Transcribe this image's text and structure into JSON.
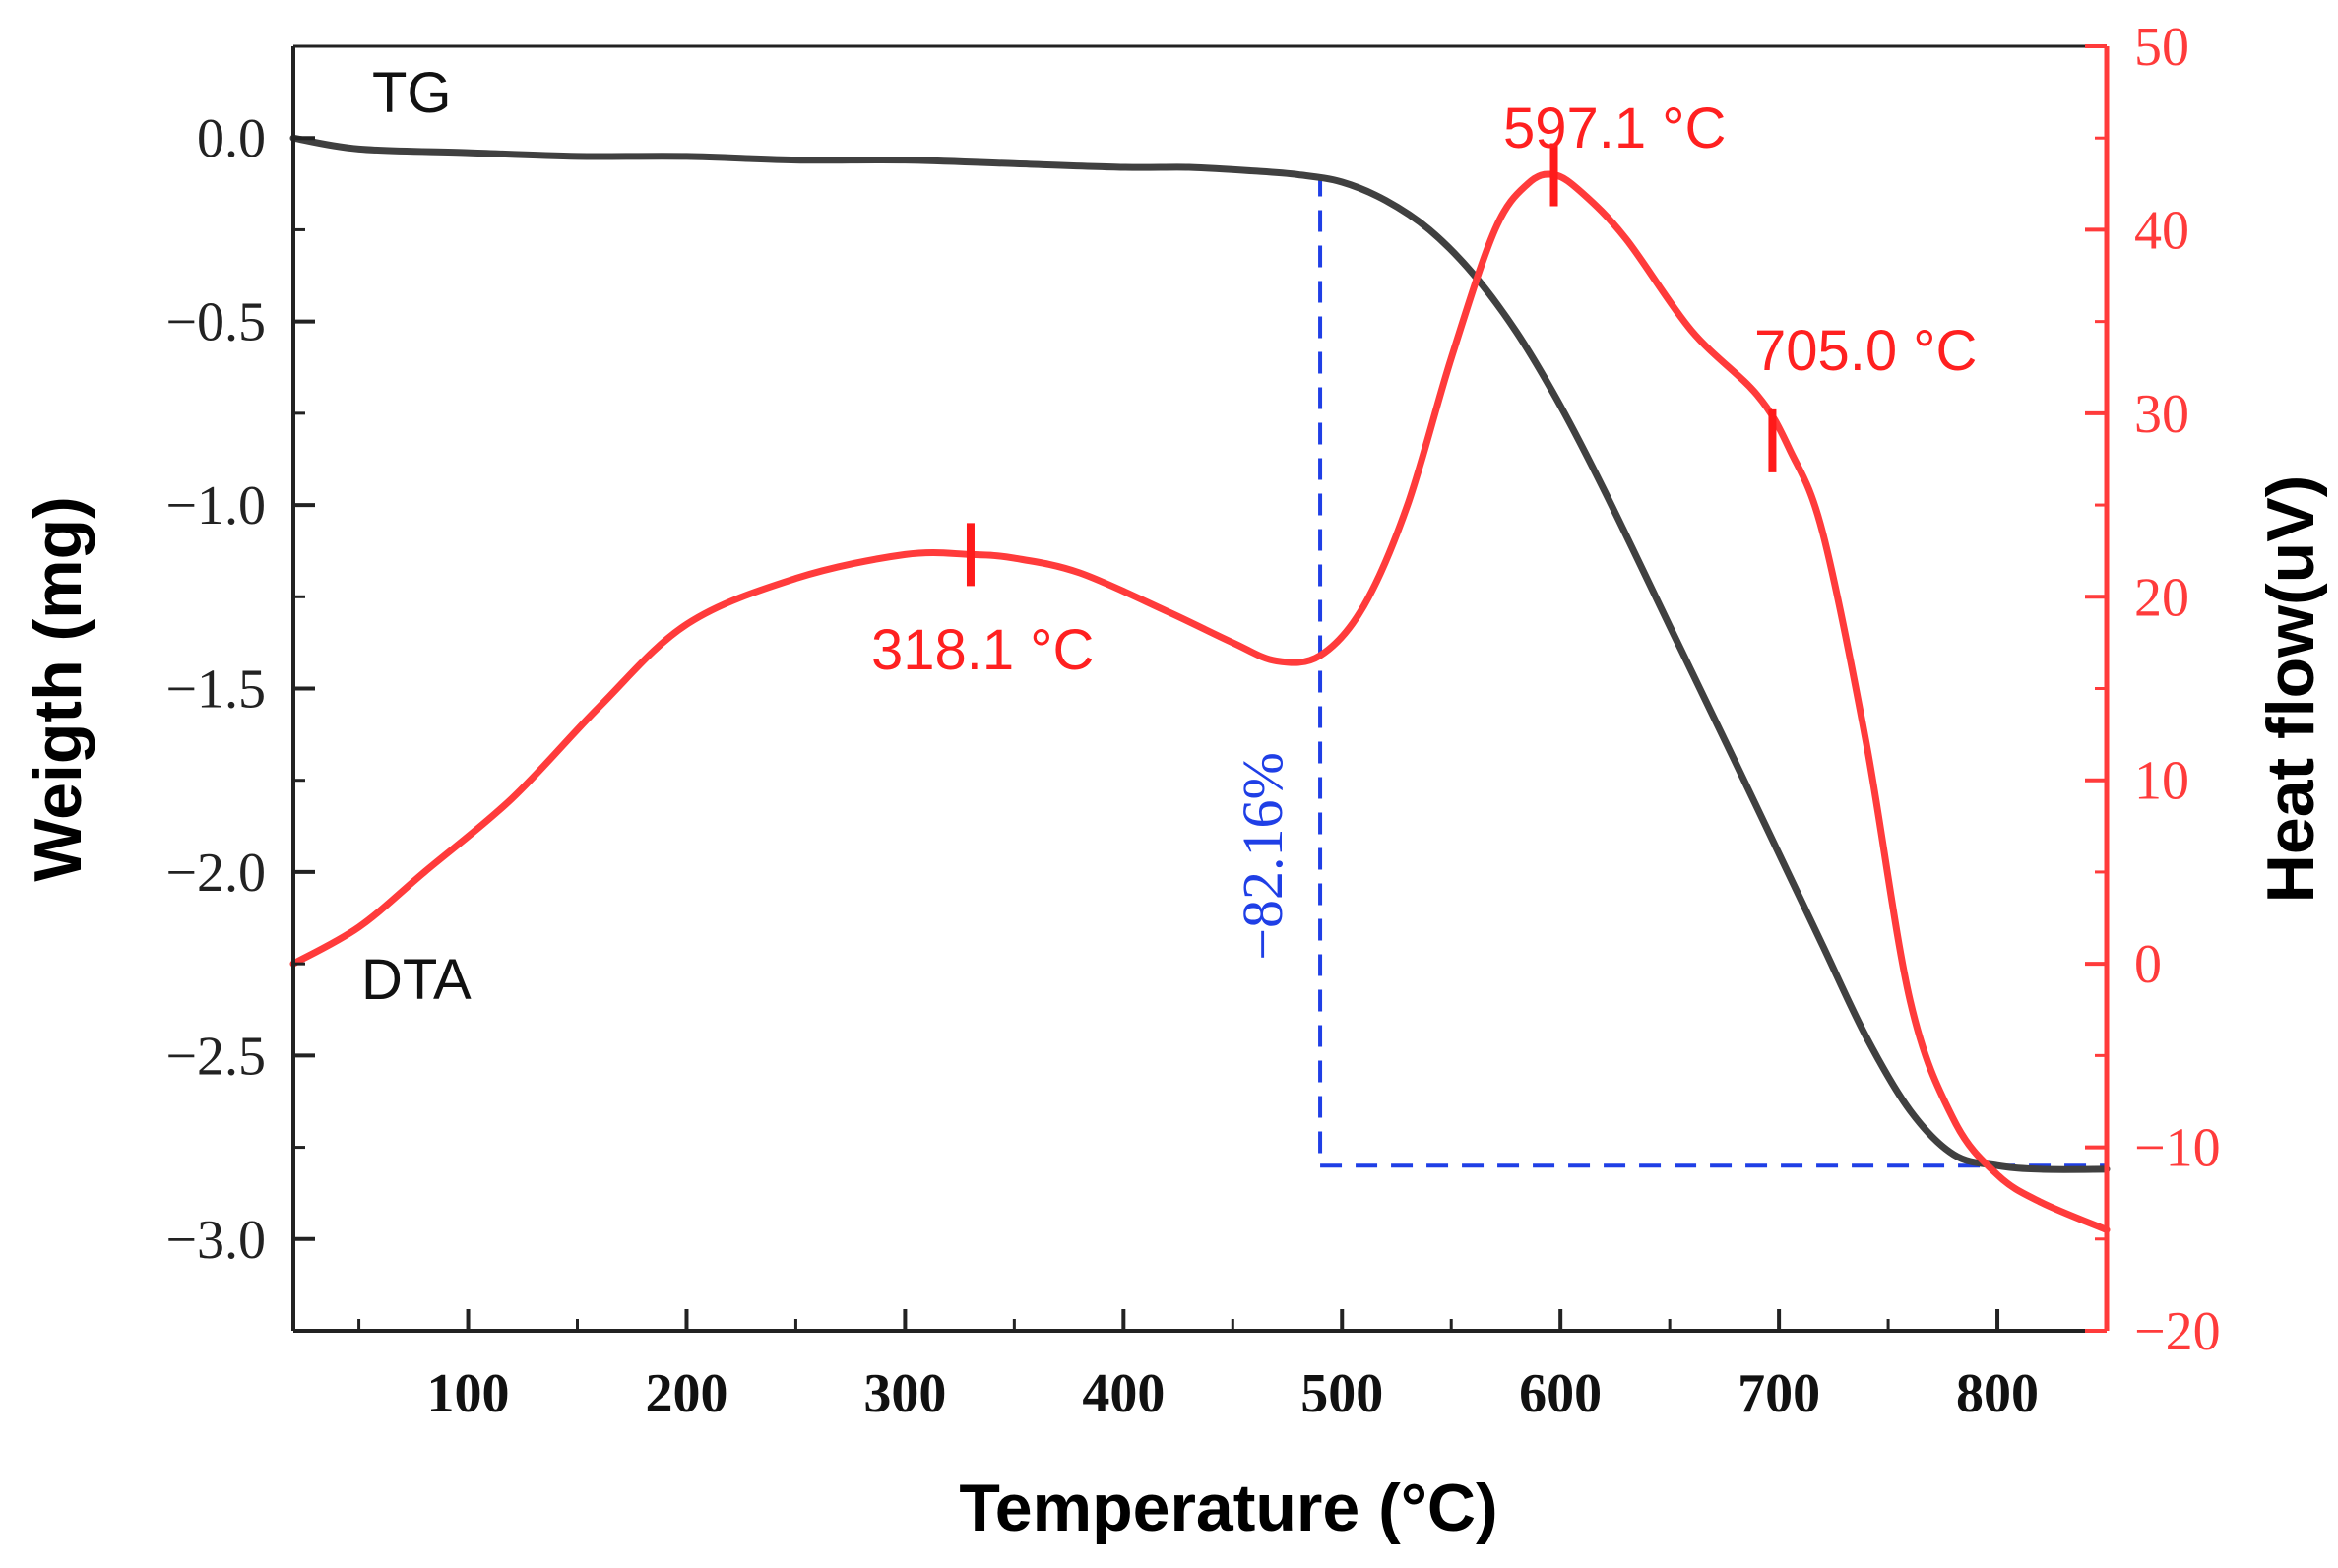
{
  "chart_data": {
    "type": "line",
    "title": "",
    "xlabel": "Temperature (°C)",
    "ylabel_left": "Weigth (mg)",
    "ylabel_right": "Heat flow(uV)",
    "xlim": [
      20,
      850
    ],
    "ylim_left": [
      -3.25,
      0.25
    ],
    "ylim_right": [
      -20,
      50
    ],
    "x_ticks": [
      100,
      200,
      300,
      400,
      500,
      600,
      700,
      800
    ],
    "x_tick_labels": [
      "100",
      "200",
      "300",
      "400",
      "500",
      "600",
      "700",
      "800"
    ],
    "y_left_ticks": [
      0.0,
      -0.5,
      -1.0,
      -1.5,
      -2.0,
      -2.5,
      -3.0
    ],
    "y_left_tick_labels": [
      "0.0",
      "−0.5",
      "−1.0",
      "−1.5",
      "−2.0",
      "−2.5",
      "−3.0"
    ],
    "y_right_ticks": [
      50,
      40,
      30,
      20,
      10,
      0,
      -10,
      -20
    ],
    "y_right_tick_labels": [
      "50",
      "40",
      "30",
      "20",
      "10",
      "0",
      "−10",
      "−20"
    ],
    "colors": {
      "tg": "#404040",
      "dta": "#ff3b3b",
      "right_axis": "#ff3b3b",
      "guide": "#1f3fe6",
      "axis": "#222222"
    },
    "series": [
      {
        "name": "TG",
        "label": "TG",
        "axis": "left",
        "x": [
          20,
          50,
          100,
          150,
          200,
          250,
          300,
          350,
          400,
          430,
          460,
          480,
          500,
          520,
          540,
          560,
          580,
          600,
          620,
          650,
          680,
          700,
          720,
          740,
          760,
          780,
          800,
          820,
          850
        ],
        "y": [
          0.0,
          -0.03,
          -0.04,
          -0.05,
          -0.05,
          -0.06,
          -0.06,
          -0.07,
          -0.08,
          -0.08,
          -0.09,
          -0.1,
          -0.12,
          -0.17,
          -0.25,
          -0.37,
          -0.53,
          -0.73,
          -0.96,
          -1.33,
          -1.7,
          -1.95,
          -2.2,
          -2.45,
          -2.65,
          -2.77,
          -2.8,
          -2.81,
          -2.81
        ]
      },
      {
        "name": "DTA",
        "label": "DTA",
        "axis": "right",
        "x": [
          20,
          50,
          80,
          120,
          160,
          200,
          250,
          300,
          330,
          350,
          380,
          420,
          450,
          470,
          490,
          510,
          530,
          550,
          570,
          585,
          597,
          610,
          630,
          660,
          690,
          705,
          720,
          740,
          760,
          780,
          800,
          820,
          850
        ],
        "y": [
          0,
          2,
          5,
          9,
          14,
          18.5,
          21,
          22.3,
          22.3,
          22.1,
          21.3,
          19.2,
          17.5,
          16.5,
          16.8,
          19.5,
          25,
          33,
          40,
          42.5,
          43,
          42,
          39.5,
          34.5,
          31,
          28,
          23.5,
          12,
          -2,
          -8.5,
          -11.5,
          -13,
          -14.5
        ]
      }
    ],
    "guides": [
      {
        "type": "vertical",
        "x": 490,
        "from_tg": -0.1,
        "to_tg": -2.8
      },
      {
        "type": "horizontal",
        "tg": -2.8,
        "from_x": 490,
        "to_x": 850
      }
    ],
    "markers": [
      {
        "x": 330,
        "dta": 22.3
      },
      {
        "x": 597,
        "dta": 43
      },
      {
        "x": 697,
        "dta": 28.5
      }
    ],
    "annotations": {
      "tg_label": "TG",
      "dta_label": "DTA",
      "peak1": "318.1 °C",
      "peak2": "597.1 °C",
      "peak3": "705.0 °C",
      "weight_loss": "−82.16%"
    }
  }
}
